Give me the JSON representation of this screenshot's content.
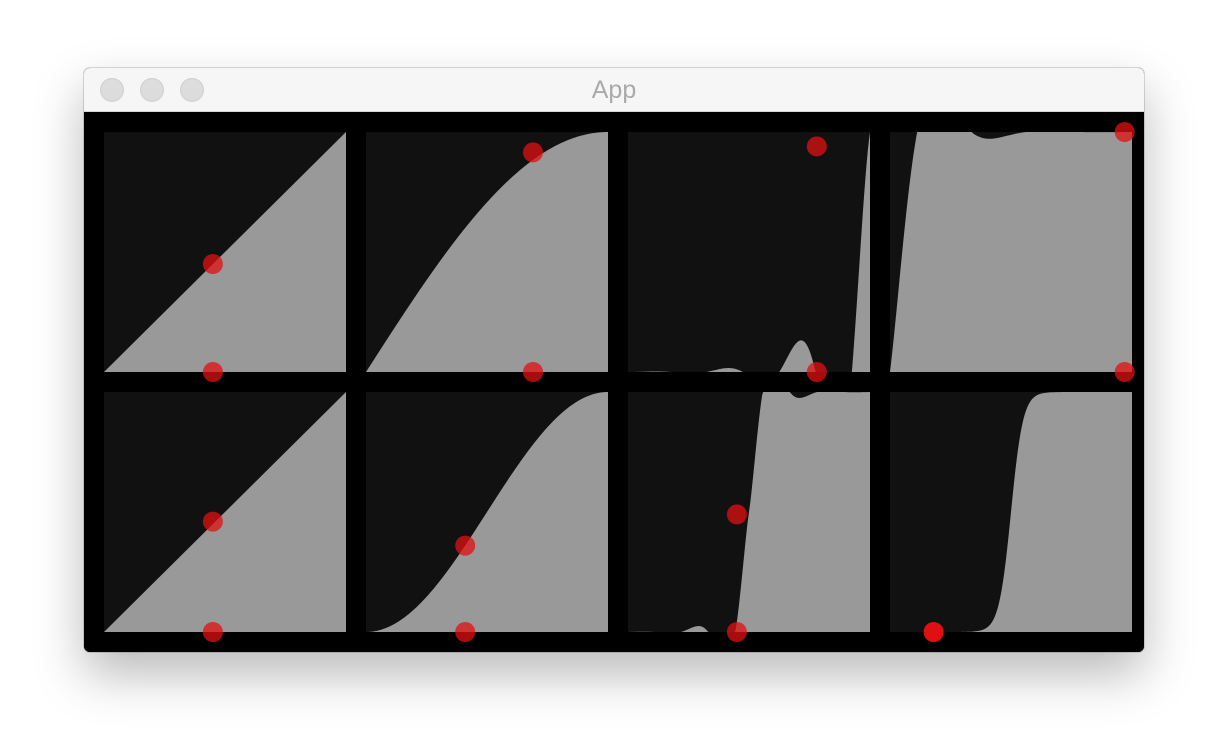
{
  "window": {
    "title": "App",
    "buttons": [
      "close-button",
      "minimize-button",
      "zoom-button"
    ]
  },
  "colors": {
    "background": "#000000",
    "panel_dark": "#111111",
    "panel_fill": "#999999",
    "handle": "#e01010"
  },
  "panels": [
    {
      "curve": "linear",
      "handles": [
        [
          0.45,
          0.45
        ],
        [
          0.45,
          0.0
        ]
      ]
    },
    {
      "curve": "sine-ease-out",
      "handles": [
        [
          0.69,
          0.915
        ],
        [
          0.69,
          0.0
        ]
      ]
    },
    {
      "curve": "elastic-in",
      "handles": [
        [
          0.78,
          0.94
        ],
        [
          0.78,
          0.0
        ]
      ]
    },
    {
      "curve": "exponential-out",
      "handles": [
        [
          0.97,
          1.0
        ],
        [
          0.97,
          0.0
        ]
      ]
    },
    {
      "curve": "linear",
      "handles": [
        [
          0.45,
          0.46
        ],
        [
          0.45,
          0.0
        ]
      ]
    },
    {
      "curve": "sine-ease-in-out",
      "handles": [
        [
          0.41,
          0.36
        ],
        [
          0.41,
          0.0
        ]
      ]
    },
    {
      "curve": "elastic-in-out",
      "handles": [
        [
          0.45,
          0.49
        ],
        [
          0.45,
          0.0
        ]
      ]
    },
    {
      "curve": "exponential-in-out",
      "handles": [
        [
          0.18,
          0.0
        ]
      ]
    }
  ]
}
